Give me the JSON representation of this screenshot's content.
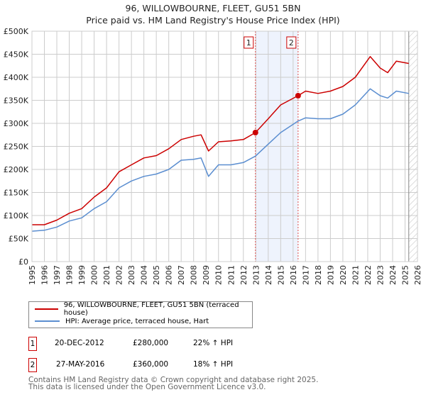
{
  "title_line1": "96, WILLOWBOURNE, FLEET, GU51 5BN",
  "title_line2": "Price paid vs. HM Land Registry's House Price Index (HPI)",
  "chart_data": {
    "type": "line",
    "title": "96, WILLOWBOURNE, FLEET, GU51 5BN — Price paid vs. HM Land Registry's House Price Index (HPI)",
    "xlim": [
      1995,
      2026
    ],
    "ylim": [
      0,
      500000
    ],
    "y_ticks": [
      0,
      50000,
      100000,
      150000,
      200000,
      250000,
      300000,
      350000,
      400000,
      450000,
      500000
    ],
    "y_tick_labels": [
      "£0",
      "£50K",
      "£100K",
      "£150K",
      "£200K",
      "£250K",
      "£300K",
      "£350K",
      "£400K",
      "£450K",
      "£500K"
    ],
    "x_ticks": [
      "1995",
      "1996",
      "1997",
      "1998",
      "1999",
      "2000",
      "2001",
      "2002",
      "2003",
      "2004",
      "2005",
      "2006",
      "2007",
      "2008",
      "2009",
      "2010",
      "2011",
      "2012",
      "2013",
      "2014",
      "2015",
      "2016",
      "2017",
      "2018",
      "2019",
      "2020",
      "2021",
      "2022",
      "2023",
      "2024",
      "2025",
      "2026"
    ],
    "grid": true,
    "x": [
      1995,
      1996,
      1997,
      1998,
      1999,
      2000,
      2001,
      2002,
      2003,
      2004,
      2005,
      2006,
      2007,
      2008,
      2008.6,
      2009.2,
      2010,
      2011,
      2012,
      2012.97,
      2014,
      2015,
      2016.4,
      2017,
      2018,
      2019,
      2020,
      2021,
      2022.2,
      2023,
      2023.6,
      2024.3,
      2025.3
    ],
    "series": [
      {
        "name": "96, WILLOWBOURNE, FLEET, GU51 5BN (terraced house)",
        "color": "#cc0000",
        "values": [
          80000,
          80000,
          90000,
          105000,
          115000,
          140000,
          160000,
          195000,
          210000,
          225000,
          230000,
          245000,
          265000,
          272000,
          275000,
          240000,
          260000,
          262000,
          265000,
          280000,
          310000,
          340000,
          360000,
          370000,
          365000,
          370000,
          380000,
          400000,
          445000,
          420000,
          410000,
          435000,
          430000
        ]
      },
      {
        "name": "HPI: Average price, terraced house, Hart",
        "color": "#5b8ed0",
        "values": [
          66000,
          68000,
          75000,
          88000,
          95000,
          115000,
          130000,
          160000,
          175000,
          185000,
          190000,
          200000,
          220000,
          222000,
          225000,
          185000,
          210000,
          210000,
          215000,
          229000,
          255000,
          280000,
          305000,
          312000,
          310000,
          310000,
          320000,
          340000,
          375000,
          360000,
          355000,
          370000,
          365000
        ]
      }
    ],
    "sales": [
      {
        "label": "1",
        "x": 2012.97,
        "price": 280000
      },
      {
        "label": "2",
        "x": 2016.4,
        "price": 360000
      }
    ],
    "shaded_range": [
      2012.97,
      2016.4
    ],
    "hatched_from": 2025.3,
    "legend_placement": "below"
  },
  "legend": {
    "property": "96, WILLOWBOURNE, FLEET, GU51 5BN (terraced house)",
    "hpi": "HPI: Average price, terraced house, Hart"
  },
  "transactions": [
    {
      "num": "1",
      "date": "20-DEC-2012",
      "price": "£280,000",
      "delta": "22% ↑ HPI"
    },
    {
      "num": "2",
      "date": "27-MAY-2016",
      "price": "£360,000",
      "delta": "18% ↑ HPI"
    }
  ],
  "footer_line1": "Contains HM Land Registry data © Crown copyright and database right 2025.",
  "footer_line2": "This data is licensed under the Open Government Licence v3.0."
}
